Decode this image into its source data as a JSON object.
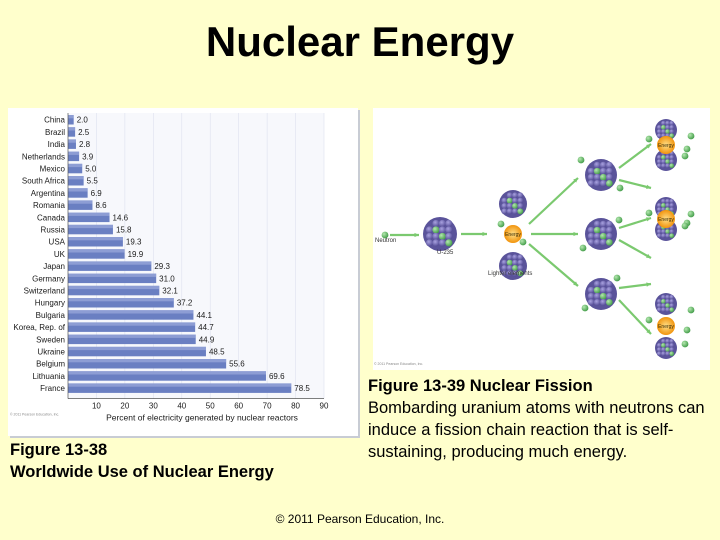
{
  "slide": {
    "title": "Nuclear Energy",
    "copyright": "© 2011 Pearson Education, Inc."
  },
  "captions": {
    "fig38_title": "Figure 13-38",
    "fig38_subtitle": "Worldwide Use of Nuclear Energy",
    "fig39_title": "Figure 13-39  Nuclear Fission",
    "fig39_text": "Bombarding uranium atoms with neutrons can induce a fission chain reaction that is self-sustaining, producing much energy."
  },
  "fission_figure": {
    "labels": {
      "neutron": "Neutron",
      "u235": "U-235",
      "lighter": "Lighter elements",
      "energy": "Energy",
      "copyright": "© 2011 Pearson Education, Inc."
    },
    "colors": {
      "nucleus": "#6b63a8",
      "neutron": "#66bb6a",
      "energy": "#f5a623",
      "arrow": "#7bc96f"
    }
  },
  "chart_data": {
    "type": "bar",
    "orientation": "horizontal",
    "categories": [
      "China",
      "Brazil",
      "India",
      "Netherlands",
      "Mexico",
      "South Africa",
      "Argentina",
      "Romania",
      "Canada",
      "Russia",
      "USA",
      "UK",
      "Japan",
      "Germany",
      "Switzerland",
      "Hungary",
      "Bulgaria",
      "Korea, Rep. of",
      "Sweden",
      "Ukraine",
      "Belgium",
      "Lithuania",
      "France"
    ],
    "values": [
      2.0,
      2.5,
      2.8,
      3.9,
      5.0,
      5.5,
      6.9,
      8.6,
      14.6,
      15.8,
      19.3,
      19.9,
      29.3,
      31.0,
      32.1,
      37.2,
      44.1,
      44.7,
      44.9,
      48.5,
      55.6,
      69.6,
      78.5
    ],
    "value_labels": [
      "2.0",
      "2.5",
      "2.8",
      "3.9",
      "5.0",
      "5.5",
      "6.9",
      "8.6",
      "14.6",
      "15.8",
      "19.3",
      "19.9",
      "29.3",
      "31.0",
      "32.1",
      "37.2",
      "44.1",
      "44.7",
      "44.9",
      "48.5",
      "55.6",
      "69.6",
      "78.5"
    ],
    "xlabel": "Percent of electricity generated by nuclear reactors",
    "xticks": [
      "10",
      "20",
      "30",
      "40",
      "50",
      "60",
      "70",
      "80",
      "90"
    ],
    "xlim": [
      0,
      90
    ],
    "credit": "© 2011 Pearson Education, Inc.",
    "colors": {
      "bar": "#6a7fc2",
      "bar_light": "#a9b6e3"
    }
  }
}
